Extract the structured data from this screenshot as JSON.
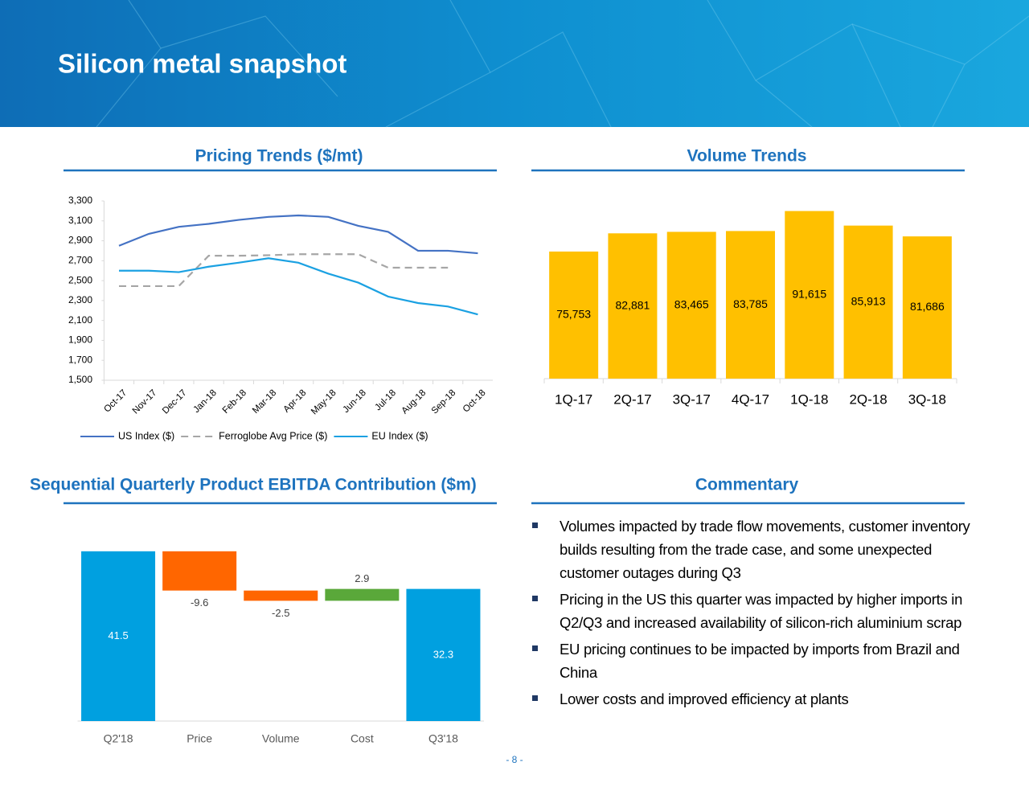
{
  "title": "Silicon metal snapshot",
  "page_number": "- 8 -",
  "commentary": {
    "heading": "Commentary",
    "bullets": [
      "Volumes impacted by trade flow movements, customer inventory builds resulting from the trade case, and some unexpected customer outages during Q3",
      "Pricing in the US this quarter was impacted by higher imports in Q2/Q3 and increased availability of silicon-rich aluminium scrap",
      "EU pricing continues to be impacted by imports from Brazil and China",
      "Lower costs and improved efficiency at plants"
    ]
  },
  "chart_data": [
    {
      "type": "line",
      "title": "Pricing Trends ($/mt)",
      "categories": [
        "Oct-17",
        "Nov-17",
        "Dec-17",
        "Jan-18",
        "Feb-18",
        "Mar-18",
        "Apr-18",
        "May-18",
        "Jun-18",
        "Jul-18",
        "Aug-18",
        "Sep-18",
        "Oct-18"
      ],
      "series": [
        {
          "name": "US Index ($)",
          "color": "#4472c4",
          "dash": false,
          "values": [
            2850,
            2970,
            3040,
            3070,
            3110,
            3140,
            3155,
            3140,
            3050,
            2990,
            2800,
            2800,
            2775
          ]
        },
        {
          "name": "Ferroglobe Avg Price ($)",
          "color": "#a6a6a6",
          "dash": true,
          "values": [
            2445,
            2445,
            2445,
            2750,
            2750,
            2755,
            2765,
            2765,
            2765,
            2630,
            2630,
            2630,
            null
          ]
        },
        {
          "name": "EU Index ($)",
          "color": "#1ba1e2",
          "dash": false,
          "values": [
            2600,
            2600,
            2585,
            2640,
            2680,
            2725,
            2680,
            2570,
            2480,
            2340,
            2275,
            2240,
            2160
          ]
        }
      ],
      "ylim": [
        1500,
        3300
      ],
      "yticks": [
        {
          "value": 1500,
          "label": "1,500"
        },
        {
          "value": 1700,
          "label": "1,700"
        },
        {
          "value": 1900,
          "label": "1,900"
        },
        {
          "value": 2100,
          "label": "2,100"
        },
        {
          "value": 2300,
          "label": "2,300"
        },
        {
          "value": 2500,
          "label": "2,500"
        },
        {
          "value": 2700,
          "label": "2,700"
        },
        {
          "value": 2900,
          "label": "2,900"
        },
        {
          "value": 3100,
          "label": "3,100"
        },
        {
          "value": 3300,
          "label": "3,300"
        }
      ],
      "grid": false,
      "legend": "bottom"
    },
    {
      "type": "bar",
      "title": "Volume Trends",
      "categories": [
        "1Q-17",
        "2Q-17",
        "3Q-17",
        "4Q-17",
        "1Q-18",
        "2Q-18",
        "3Q-18"
      ],
      "values": [
        75753,
        82881,
        83465,
        83785,
        91615,
        85913,
        81686
      ],
      "value_labels": [
        "75,753",
        "82,881",
        "83,465",
        "83,785",
        "91,615",
        "85,913",
        "81,686"
      ],
      "color": "#ffc000",
      "ylim": [
        26000,
        105000
      ]
    },
    {
      "type": "waterfall",
      "title": "Sequential Quarterly Product EBITDA Contribution ($m)",
      "categories": [
        "Q2'18",
        "Price",
        "Volume",
        "Cost",
        "Q3'18"
      ],
      "values": [
        41.5,
        -9.6,
        -2.5,
        2.9,
        32.3
      ],
      "totals": [
        true,
        false,
        false,
        false,
        true
      ],
      "colors": {
        "total": "#00a0e0",
        "decrease": "#ff6600",
        "increase": "#5aa83a"
      },
      "ylim": [
        0,
        45
      ]
    }
  ]
}
